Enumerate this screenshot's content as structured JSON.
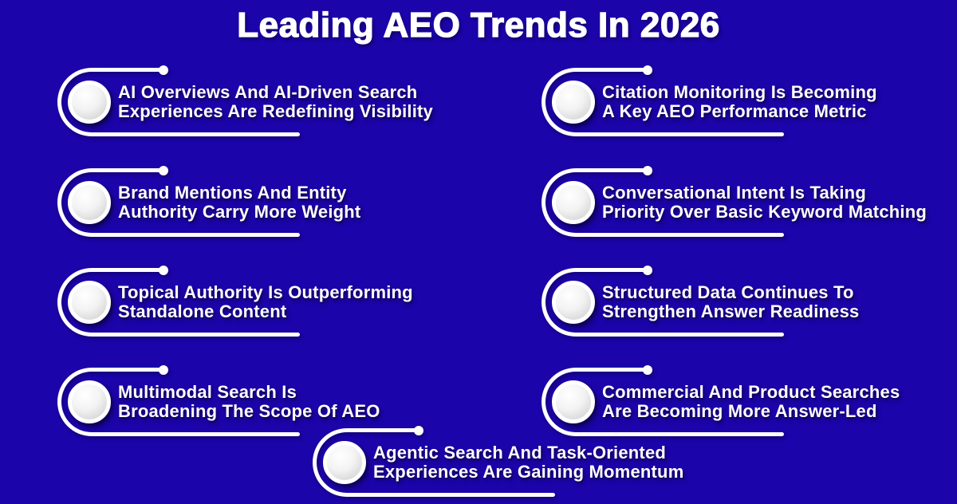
{
  "title": "Leading AEO Trends In 2026",
  "colors": {
    "background": "#1b04a9",
    "foreground": "#ffffff",
    "sphere_fill": "#e2e2e2"
  },
  "icon": "sphere-icon",
  "items": [
    {
      "line1": "AI Overviews And AI-Driven Search",
      "line2": "Experiences Are Redefining Visibility"
    },
    {
      "line1": "Brand Mentions And Entity",
      "line2": "Authority Carry More Weight"
    },
    {
      "line1": "Topical Authority Is Outperforming",
      "line2": "Standalone Content"
    },
    {
      "line1": "Multimodal Search Is",
      "line2": "Broadening The Scope Of AEO"
    },
    {
      "line1": "Citation Monitoring Is Becoming",
      "line2": "A Key AEO Performance Metric"
    },
    {
      "line1": "Conversational Intent Is Taking",
      "line2": "Priority Over Basic Keyword Matching"
    },
    {
      "line1": "Structured Data Continues To",
      "line2": "Strengthen Answer Readiness"
    },
    {
      "line1": "Commercial And Product Searches",
      "line2": "Are Becoming More Answer-Led"
    },
    {
      "line1": "Agentic Search And Task-Oriented",
      "line2": "Experiences Are Gaining Momentum"
    }
  ]
}
